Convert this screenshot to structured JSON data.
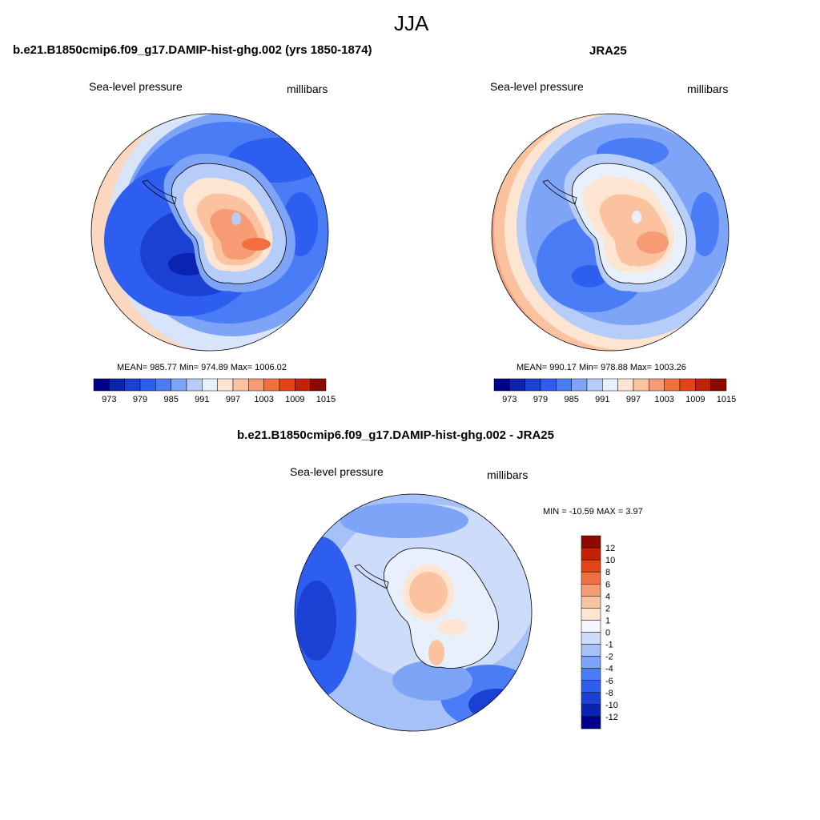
{
  "page_title": "JJA",
  "panels": [
    {
      "title": "b.e21.B1850cmip6.f09_g17.DAMIP-hist-ghg.002 (yrs 1850-1874)",
      "left_label": "Sea-level pressure",
      "right_label": "millibars",
      "stats": "MEAN= 985.77  Min= 974.89  Max= 1006.02",
      "stats_values": {
        "mean": 985.77,
        "min": 974.89,
        "max": 1006.02
      }
    },
    {
      "title": "JRA25",
      "left_label": "Sea-level pressure",
      "right_label": "millibars",
      "stats": "MEAN= 990.17  Min= 978.88  Max= 1003.26",
      "stats_values": {
        "mean": 990.17,
        "min": 978.88,
        "max": 1003.26
      }
    },
    {
      "title": "b.e21.B1850cmip6.f09_g17.DAMIP-hist-ghg.002 - JRA25",
      "left_label": "Sea-level pressure",
      "right_label": "millibars",
      "stats": "MIN = -10.59 MAX =   3.97",
      "stats_values": {
        "min": -10.59,
        "max": 3.97
      }
    }
  ],
  "colorbar_abs": {
    "ticks": [
      "973",
      "979",
      "985",
      "991",
      "997",
      "1003",
      "1009",
      "1015"
    ],
    "colors": [
      "#00008a",
      "#0a23b0",
      "#1a40d4",
      "#2e5ef0",
      "#4a7cf5",
      "#7ea4f7",
      "#b5cdf8",
      "#e7f0fb",
      "#fde5d2",
      "#fbc2a0",
      "#f79b74",
      "#f2703f",
      "#e64416",
      "#c52106",
      "#8e0a00"
    ]
  },
  "colorbar_diff": {
    "ticks": [
      "12",
      "10",
      "8",
      "6",
      "4",
      "2",
      "1",
      "0",
      "-1",
      "-2",
      "-4",
      "-6",
      "-8",
      "-10",
      "-12"
    ],
    "colors": [
      "#8e0a00",
      "#c52106",
      "#e64416",
      "#f2703f",
      "#f79b74",
      "#fbc2a0",
      "#fde5d2",
      "#f4f7fd",
      "#cddcfa",
      "#a5c1f7",
      "#7ea4f7",
      "#4a7cf5",
      "#2e5ef0",
      "#1a40d4",
      "#0a23b0",
      "#00008a"
    ]
  }
}
